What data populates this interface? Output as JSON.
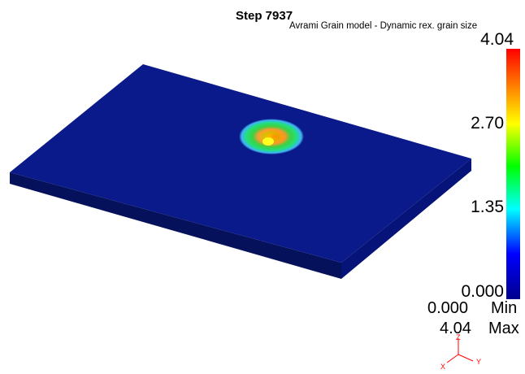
{
  "header": {
    "step_label": "Step 7937",
    "result_name": "Avrami Grain model - Dynamic rex. grain size"
  },
  "legend": {
    "labels": [
      "4.04",
      "2.70",
      "1.35",
      "0.000"
    ],
    "min_value": "0.000",
    "min_label": "Min",
    "max_value": "4.04",
    "max_label": "Max",
    "colors": [
      "#ff0000",
      "#ff7f00",
      "#ffff00",
      "#00ff00",
      "#00ffff",
      "#0000ff",
      "#00008b"
    ]
  },
  "axes": {
    "x": "X",
    "y": "Y",
    "z": "Z",
    "colors": {
      "x": "#ff0000",
      "y": "#ff0000",
      "z": "#ff0000"
    }
  },
  "model": {
    "plate_top_color": "#0a1a7a",
    "plate_side_color": "#05115a",
    "hotspot_colors": [
      "#ffff00",
      "#ff8000",
      "#00ff40",
      "#00c0ff"
    ]
  }
}
